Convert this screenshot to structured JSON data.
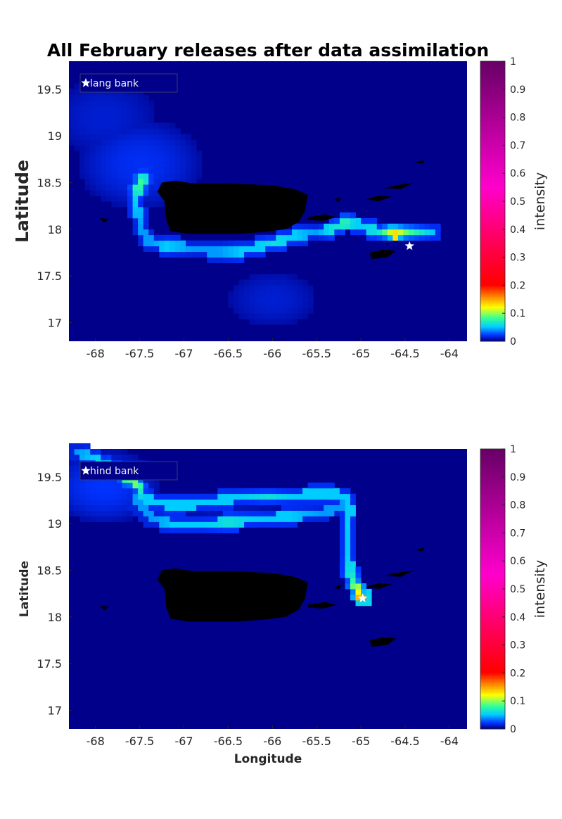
{
  "chart_data": [
    {
      "type": "heatmap",
      "title": "All February releases after data assimilation",
      "xlabel": "",
      "ylabel": "Latitude",
      "colorbar_label": "intensity",
      "colormap": [
        "#00008b",
        "#0033ff",
        "#00ccff",
        "#33ff99",
        "#ffff00",
        "#ff0000",
        "#ff00cc",
        "#660066"
      ],
      "clim": [
        0,
        1
      ],
      "colorbar_ticks": [
        "0",
        "0.1",
        "0.2",
        "0.3",
        "0.4",
        "0.5",
        "0.6",
        "0.7",
        "0.8",
        "0.9",
        "1"
      ],
      "xlim": [
        -68.3,
        -63.8
      ],
      "ylim": [
        16.8,
        19.8
      ],
      "x_ticks": [
        -68,
        -67.5,
        -67,
        -66.5,
        -66,
        -65.5,
        -65,
        -64.5,
        -64
      ],
      "x_tick_labels": [
        "-68",
        "-67.5",
        "-67",
        "-66.5",
        "-66",
        "-65.5",
        "-65",
        "-64.5",
        "-64"
      ],
      "y_ticks": [
        17,
        17.5,
        18,
        18.5,
        19,
        19.5
      ],
      "y_tick_labels": [
        "17",
        "17.5",
        "18",
        "18.5",
        "19",
        "19.5"
      ],
      "legend": {
        "label": "lang bank",
        "placement": "top-left"
      },
      "release_site": {
        "lon": -64.45,
        "lat": 17.82,
        "marker": "white-star"
      },
      "trajectories": [
        {
          "name": "",
          "points": [
            [
              -64.2,
              17.98
            ],
            [
              -64.45,
              17.97
            ],
            [
              -64.62,
              17.95
            ],
            [
              -64.8,
              17.98
            ],
            [
              -65.05,
              18.05
            ],
            [
              -65.18,
              18.08
            ],
            [
              -65.32,
              18.0
            ],
            [
              -65.5,
              17.97
            ],
            [
              -65.75,
              17.93
            ],
            [
              -66.0,
              17.85
            ],
            [
              -66.15,
              17.82
            ],
            [
              -66.35,
              17.77
            ],
            [
              -66.6,
              17.75
            ],
            [
              -66.9,
              17.8
            ],
            [
              -67.2,
              17.82
            ],
            [
              -67.38,
              17.85
            ],
            [
              -67.48,
              18.0
            ],
            [
              -67.55,
              18.3
            ],
            [
              -67.5,
              18.5
            ],
            [
              -67.45,
              18.55
            ]
          ],
          "intensity": [
            0.05,
            0.08,
            0.13,
            0.06,
            0.05,
            0.07,
            0.06,
            0.04,
            0.05,
            0.06,
            0.05,
            0.05,
            0.04,
            0.04,
            0.05,
            0.04,
            0.04,
            0.05,
            0.08,
            0.06
          ]
        }
      ],
      "diffuse_regions": [
        {
          "lon": -67.5,
          "lat": 18.7,
          "sx": 0.8,
          "sy": 0.55,
          "peak": 0.018
        },
        {
          "lon": -67.9,
          "lat": 19.2,
          "sx": 0.7,
          "sy": 0.5,
          "peak": 0.012
        },
        {
          "lon": -66.0,
          "lat": 17.25,
          "sx": 0.6,
          "sy": 0.35,
          "peak": 0.012
        }
      ]
    },
    {
      "type": "heatmap",
      "title": "",
      "xlabel": "Longitude",
      "ylabel": "Latitude",
      "colorbar_label": "intensity",
      "colormap": [
        "#00008b",
        "#0033ff",
        "#00ccff",
        "#33ff99",
        "#ffff00",
        "#ff0000",
        "#ff00cc",
        "#660066"
      ],
      "clim": [
        0,
        1
      ],
      "colorbar_ticks": [
        "0",
        "0.1",
        "0.2",
        "0.3",
        "0.4",
        "0.5",
        "0.6",
        "0.7",
        "0.8",
        "0.9",
        "1"
      ],
      "xlim": [
        -68.3,
        -63.8
      ],
      "ylim": [
        16.8,
        19.8
      ],
      "x_ticks": [
        -68,
        -67.5,
        -67,
        -66.5,
        -66,
        -65.5,
        -65,
        -64.5,
        -64
      ],
      "x_tick_labels": [
        "-68",
        "-67.5",
        "-67",
        "-66.5",
        "-66",
        "-65.5",
        "-65",
        "-64.5",
        "-64"
      ],
      "y_ticks": [
        17,
        17.5,
        18,
        18.5,
        19,
        19.5
      ],
      "y_tick_labels": [
        "17",
        "17.5",
        "18",
        "18.5",
        "19",
        "19.5"
      ],
      "legend": {
        "label": "hind bank",
        "placement": "top-left"
      },
      "release_site": {
        "lon": -64.98,
        "lat": 18.2,
        "marker": "white-star"
      },
      "trajectories": [
        {
          "name": "",
          "points": [
            [
              -64.98,
              18.2
            ],
            [
              -65.05,
              18.3
            ],
            [
              -65.12,
              18.45
            ],
            [
              -65.15,
              18.7
            ],
            [
              -65.14,
              18.95
            ],
            [
              -65.13,
              19.2
            ],
            [
              -65.2,
              19.3
            ],
            [
              -65.45,
              19.32
            ],
            [
              -65.75,
              19.3
            ],
            [
              -66.05,
              19.3
            ],
            [
              -66.4,
              19.28
            ],
            [
              -66.8,
              19.22
            ],
            [
              -67.15,
              19.2
            ],
            [
              -67.45,
              19.28
            ],
            [
              -67.55,
              19.45
            ],
            [
              -67.85,
              19.62
            ],
            [
              -68.2,
              19.78
            ]
          ],
          "intensity": [
            0.16,
            0.1,
            0.06,
            0.05,
            0.05,
            0.05,
            0.05,
            0.05,
            0.05,
            0.06,
            0.05,
            0.05,
            0.05,
            0.05,
            0.09,
            0.06,
            0.04
          ]
        },
        {
          "name": "",
          "points": [
            [
              -65.18,
              19.2
            ],
            [
              -65.45,
              19.12
            ],
            [
              -65.8,
              19.08
            ],
            [
              -66.1,
              19.05
            ],
            [
              -66.5,
              19.02
            ],
            [
              -66.8,
              18.98
            ],
            [
              -67.1,
              18.98
            ],
            [
              -67.35,
              19.05
            ],
            [
              -67.55,
              19.25
            ]
          ],
          "intensity": [
            0.04,
            0.04,
            0.05,
            0.05,
            0.06,
            0.05,
            0.05,
            0.04,
            0.04
          ]
        }
      ],
      "diffuse_regions": [
        {
          "lon": -67.9,
          "lat": 19.4,
          "sx": 0.7,
          "sy": 0.45,
          "peak": 0.02
        },
        {
          "lon": -66.5,
          "lat": 19.15,
          "sx": 0.9,
          "sy": 0.25,
          "peak": 0.008
        }
      ]
    }
  ],
  "islands": [
    {
      "name": "",
      "points": [
        [
          -67.25,
          18.5
        ],
        [
          -67.1,
          18.52
        ],
        [
          -66.9,
          18.49
        ],
        [
          -66.5,
          18.49
        ],
        [
          -66.0,
          18.47
        ],
        [
          -65.75,
          18.43
        ],
        [
          -65.6,
          18.37
        ],
        [
          -65.63,
          18.2
        ],
        [
          -65.7,
          18.08
        ],
        [
          -65.85,
          18.0
        ],
        [
          -66.1,
          17.97
        ],
        [
          -66.4,
          17.95
        ],
        [
          -66.7,
          17.95
        ],
        [
          -66.95,
          17.95
        ],
        [
          -67.15,
          17.98
        ],
        [
          -67.2,
          18.1
        ],
        [
          -67.22,
          18.3
        ],
        [
          -67.3,
          18.4
        ]
      ]
    },
    {
      "name": "",
      "points": [
        [
          -65.6,
          18.13
        ],
        [
          -65.4,
          18.16
        ],
        [
          -65.28,
          18.13
        ],
        [
          -65.42,
          18.09
        ],
        [
          -65.6,
          18.1
        ]
      ]
    },
    {
      "name": "",
      "points": [
        [
          -64.95,
          18.32
        ],
        [
          -64.8,
          18.36
        ],
        [
          -64.65,
          18.35
        ],
        [
          -64.8,
          18.3
        ]
      ]
    },
    {
      "name": "",
      "points": [
        [
          -64.75,
          18.44
        ],
        [
          -64.55,
          18.48
        ],
        [
          -64.4,
          18.5
        ],
        [
          -64.55,
          18.43
        ]
      ]
    },
    {
      "name": "",
      "points": [
        [
          -64.9,
          17.75
        ],
        [
          -64.75,
          17.78
        ],
        [
          -64.6,
          17.77
        ],
        [
          -64.7,
          17.7
        ],
        [
          -64.88,
          17.68
        ]
      ]
    },
    {
      "name": "",
      "points": [
        [
          -64.4,
          18.72
        ],
        [
          -64.28,
          18.74
        ],
        [
          -64.3,
          18.7
        ]
      ]
    },
    {
      "name": "",
      "points": [
        [
          -67.95,
          18.12
        ],
        [
          -67.85,
          18.11
        ],
        [
          -67.9,
          18.07
        ]
      ]
    },
    {
      "name": "",
      "points": [
        [
          -65.3,
          18.32
        ],
        [
          -65.22,
          18.34
        ],
        [
          -65.25,
          18.29
        ]
      ]
    }
  ]
}
